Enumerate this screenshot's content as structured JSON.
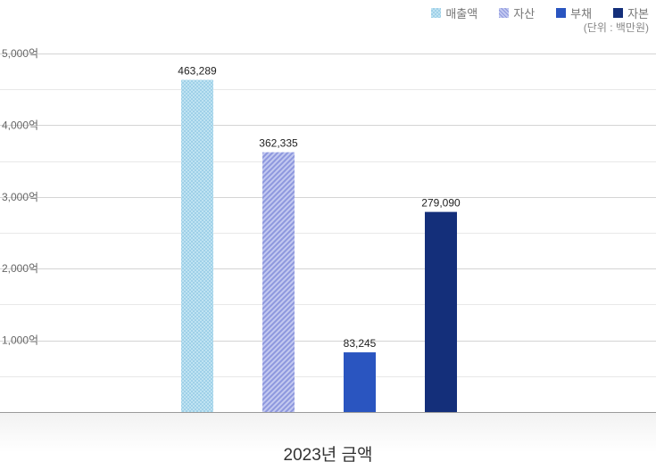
{
  "unit_note": "(단위 : 백만원)",
  "footer_label": "2023년 금액",
  "chart_data": {
    "type": "bar",
    "categories": [
      "2023년 금액"
    ],
    "series": [
      {
        "name": "매출액",
        "values": [
          463289
        ],
        "label": "463,289",
        "color": "#a9d8ec",
        "pattern": "check"
      },
      {
        "name": "자산",
        "values": [
          362335
        ],
        "label": "362,335",
        "color": "#aab2e8",
        "pattern": "diagonal"
      },
      {
        "name": "부채",
        "values": [
          83245
        ],
        "label": "83,245",
        "color": "#2a55c0",
        "pattern": "solid"
      },
      {
        "name": "자본",
        "values": [
          279090
        ],
        "label": "279,090",
        "color": "#142f7a",
        "pattern": "solid"
      }
    ],
    "y_ticks": [
      {
        "value": 100000,
        "label": "1,000억"
      },
      {
        "value": 200000,
        "label": "2,000억"
      },
      {
        "value": 300000,
        "label": "3,000억"
      },
      {
        "value": 400000,
        "label": "4,000억"
      },
      {
        "value": 500000,
        "label": "5,000억"
      }
    ],
    "ylim": [
      0,
      500000
    ],
    "grid": true,
    "legend_position": "top-right"
  }
}
